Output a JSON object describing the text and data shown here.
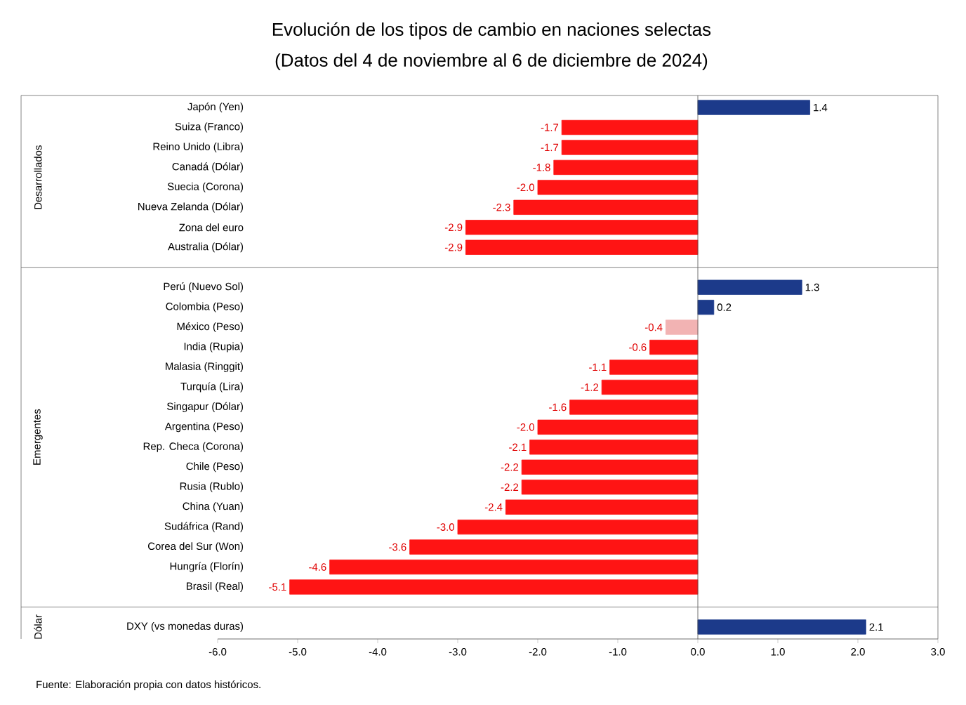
{
  "chart_data": {
    "type": "bar",
    "orientation": "horizontal",
    "title": "Evolución de los tipos de cambio en naciones selectas",
    "subtitle": "(Datos del 4 de noviembre al 6 de diciembre de 2024)",
    "categories": [
      "Japón (Yen)",
      "Suiza (Franco)",
      "Reino Unido (Libra)",
      "Canadá (Dólar)",
      "Suecia (Corona)",
      "Nueva Zelanda (Dólar)",
      "Zona del euro",
      "Australia (Dólar)",
      null,
      "Perú (Nuevo Sol)",
      "Colombia (Peso)",
      "México (Peso)",
      "India (Rupia)",
      "Malasia (Ringgit)",
      "Turquía (Lira)",
      "Singapur (Dólar)",
      "Argentina (Peso)",
      "Rep. Checa (Corona)",
      "Chile (Peso)",
      "Rusia (Rublo)",
      "China (Yuan)",
      "Sudáfrica (Rand)",
      "Corea del Sur (Won)",
      "Hungría (Florín)",
      "Brasil (Real)",
      null,
      "DXY (vs monedas duras)"
    ],
    "values": [
      1.4,
      -1.7,
      -1.7,
      -1.8,
      -2.0,
      -2.3,
      -2.9,
      -2.9,
      null,
      1.3,
      0.2,
      -0.4,
      -0.6,
      -1.1,
      -1.2,
      -1.6,
      -2.0,
      -2.1,
      -2.2,
      -2.2,
      -2.4,
      -3.0,
      -3.6,
      -4.6,
      -5.1,
      null,
      2.1
    ],
    "colors": [
      "#1c3a8a",
      "#ff1414",
      "#ff1414",
      "#ff1414",
      "#ff1414",
      "#ff1414",
      "#ff1414",
      "#ff1414",
      null,
      "#1c3a8a",
      "#1c3a8a",
      "#f2b3b3",
      "#ff1414",
      "#ff1414",
      "#ff1414",
      "#ff1414",
      "#ff1414",
      "#ff1414",
      "#ff1414",
      "#ff1414",
      "#ff1414",
      "#ff1414",
      "#ff1414",
      "#ff1414",
      "#ff1414",
      null,
      "#1c3a8a"
    ],
    "value_labels": [
      "1.4",
      "-1.7",
      "-1.7",
      "-1.8",
      "-2.0",
      "-2.3",
      "-2.9",
      "-2.9",
      null,
      "1.3",
      "0.2",
      "-0.4",
      "-0.6",
      "-1.1",
      "-1.2",
      "-1.6",
      "-2.0",
      "-2.1",
      "-2.2",
      "-2.2",
      "-2.4",
      "-3.0",
      "-3.6",
      "-4.6",
      "-5.1",
      null,
      "2.1"
    ],
    "xlim": [
      -6,
      3
    ],
    "xticks": [
      {
        "value": -6,
        "label": "-6.0"
      },
      {
        "value": -5,
        "label": "-5.0"
      },
      {
        "value": -4,
        "label": "-4.0"
      },
      {
        "value": -3,
        "label": "-3.0"
      },
      {
        "value": -2,
        "label": "-2.0"
      },
      {
        "value": -1,
        "label": "-1.0"
      },
      {
        "value": 0,
        "label": "0.0"
      },
      {
        "value": 1,
        "label": "1.0"
      },
      {
        "value": 2,
        "label": "2.0"
      },
      {
        "value": 3,
        "label": "3.0"
      }
    ],
    "annotations": [
      "Desarrollados",
      "Emergentes",
      "Dólar",
      "Fuente: Elaboración propia con datos históricos."
    ]
  }
}
